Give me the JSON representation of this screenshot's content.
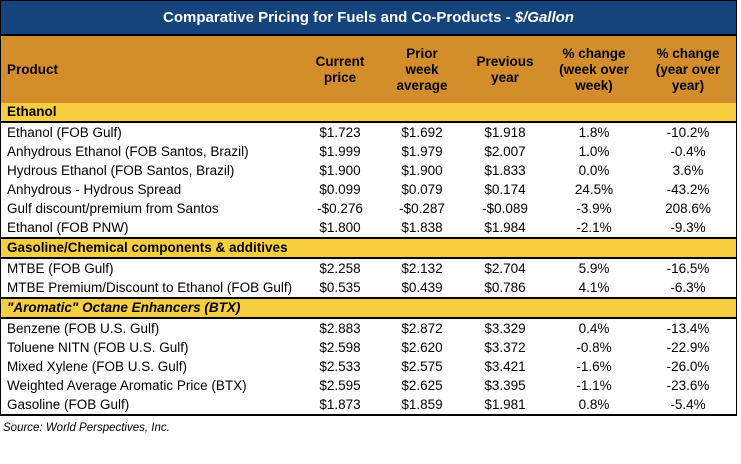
{
  "title": {
    "main": "Comparative Pricing for Fuels and Co-Products - ",
    "unit_italic": "$/Gallon"
  },
  "columns": {
    "product": "Product",
    "current_price": "Current price",
    "prior_week_average": "Prior week average",
    "previous_year": "Previous year",
    "pct_change_wow": "% change (week over week)",
    "pct_change_yoy": "% change (year over year)"
  },
  "sections": [
    {
      "name": "Ethanol",
      "rows": [
        [
          "Ethanol (FOB Gulf)",
          "$1.723",
          "$1.692",
          "$1.918",
          "1.8%",
          "-10.2%"
        ],
        [
          "Anhydrous Ethanol (FOB Santos, Brazil)",
          "$1.999",
          "$1.979",
          "$2.007",
          "1.0%",
          "-0.4%"
        ],
        [
          "Hydrous Ethanol (FOB Santos, Brazil)",
          "$1.900",
          "$1.900",
          "$1.833",
          "0.0%",
          "3.6%"
        ],
        [
          "Anhydrous - Hydrous Spread",
          "$0.099",
          "$0.079",
          "$0.174",
          "24.5%",
          "-43.2%"
        ],
        [
          "Gulf discount/premium from Santos",
          "-$0.276",
          "-$0.287",
          "-$0.089",
          "-3.9%",
          "208.6%"
        ],
        [
          "Ethanol (FOB PNW)",
          "$1.800",
          "$1.838",
          "$1.984",
          "-2.1%",
          "-9.3%"
        ]
      ]
    },
    {
      "name": "Gasoline/Chemical components & additives",
      "rows": [
        [
          "MTBE (FOB Gulf)",
          "$2.258",
          "$2.132",
          "$2.704",
          "5.9%",
          "-16.5%"
        ],
        [
          "MTBE Premium/Discount to Ethanol (FOB Gulf)",
          "$0.535",
          "$0.439",
          "$0.786",
          "4.1%",
          "-6.3%"
        ]
      ]
    },
    {
      "name": "\"Aromatic\" Octane Enhancers (BTX)",
      "rows": [
        [
          "Benzene (FOB U.S. Gulf)",
          "$2.883",
          "$2.872",
          "$3.329",
          "0.4%",
          "-13.4%"
        ],
        [
          "Toluene NITN (FOB U.S. Gulf)",
          "$2.598",
          "$2.620",
          "$3.372",
          "-0.8%",
          "-22.9%"
        ],
        [
          "Mixed Xylene (FOB U.S. Gulf)",
          "$2.533",
          "$2.575",
          "$3.421",
          "-1.6%",
          "-26.0%"
        ],
        [
          "Weighted Average Aromatic Price (BTX)",
          "$2.595",
          "$2.625",
          "$3.395",
          "-1.1%",
          "-23.6%"
        ],
        [
          "Gasoline (FOB Gulf)",
          "$1.873",
          "$1.859",
          "$1.981",
          "0.8%",
          "-5.4%"
        ]
      ]
    }
  ],
  "source": "Source: World Perspectives, Inc.",
  "colors": {
    "title_bar": "#15437C",
    "title_text": "#FFFFFF",
    "header_bg": "#D48D2B",
    "section_bg": "#F6CE3F",
    "border": "#000000",
    "text": "#000000"
  }
}
